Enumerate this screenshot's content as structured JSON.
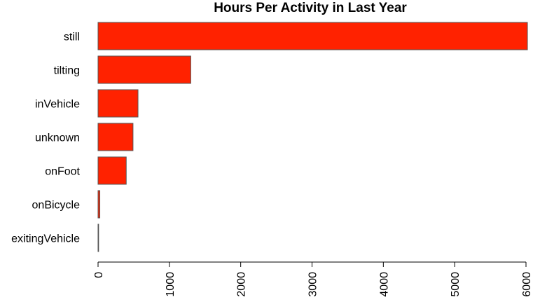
{
  "chart_data": {
    "type": "bar",
    "orientation": "horizontal",
    "title": "Hours Per Activity in Last Year",
    "xlabel": "",
    "ylabel": "",
    "categories": [
      "still",
      "tilting",
      "inVehicle",
      "unknown",
      "onFoot",
      "onBicycle",
      "exitingVehicle"
    ],
    "values": [
      6020,
      1300,
      560,
      490,
      395,
      25,
      5
    ],
    "xlim": [
      0,
      6000
    ],
    "xticks": [
      "0",
      "1000",
      "2000",
      "3000",
      "4000",
      "5000",
      "6000"
    ],
    "grid": false,
    "legend": "none",
    "colors": {
      "bar_fill": "#ff2200",
      "bar_stroke": "#555555",
      "axis": "#000000"
    }
  }
}
